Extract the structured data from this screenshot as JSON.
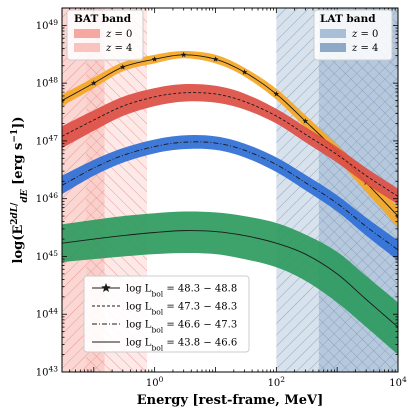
{
  "chart_data": {
    "type": "area",
    "xlabel": "Energy [rest-frame, MeV]",
    "ylabel_main": "log(E",
    "ylabel_sup": "2",
    "ylabel_frac_num": "dL",
    "ylabel_frac_den": "dE",
    "ylabel_tail": " [erg s",
    "ylabel_tail_sup": "−1",
    "ylabel_close": "])",
    "x_scale": "log",
    "y_scale": "log",
    "xlim": [
      0.03,
      10000
    ],
    "ylim": [
      1e+43,
      2e+49
    ],
    "x_tick_base": "10",
    "x_tick_exponents": [
      "0",
      "2",
      "4"
    ],
    "x_tick_values": [
      1,
      100,
      10000
    ],
    "y_tick_base": "10",
    "y_tick_exponents": [
      "43",
      "44",
      "45",
      "46",
      "47",
      "48",
      "49"
    ],
    "y_tick_values": [
      1e+43,
      1e+44,
      1e+45,
      1e+46,
      1e+47,
      1e+48,
      1e+49
    ],
    "bands": {
      "bat": {
        "title": "BAT band",
        "entries": [
          {
            "label_var": "z",
            "label_val": " = 0",
            "range": [
              0.015,
              0.15
            ],
            "color": "#f6a7a0"
          },
          {
            "label_var": "z",
            "label_val": " = 4",
            "range": [
              0.075,
              0.75
            ],
            "color": "#f8c4bd"
          }
        ]
      },
      "lat": {
        "title": "LAT band",
        "entries": [
          {
            "label_var": "z",
            "label_val": " = 0",
            "range": [
              100,
              10000
            ],
            "color": "#a9bfd8"
          },
          {
            "label_var": "z",
            "label_val": " = 4",
            "range": [
              500,
              10000
            ],
            "color": "#8ea9c8"
          }
        ]
      }
    },
    "series": [
      {
        "name": "log L",
        "name_sub": "bol",
        "name_range": " = 48.3 − 48.8",
        "line_style": "solid-star",
        "band_color": "#f5a623",
        "x": [
          0.03,
          0.1,
          0.3,
          1,
          3,
          10,
          30,
          100,
          300,
          1000,
          3000,
          10000
        ],
        "median": [
          5e+47,
          1e+48,
          1.9e+48,
          2.6e+48,
          3.1e+48,
          2.6e+48,
          1.55e+48,
          6.5e+47,
          2.2e+47,
          6.5e+46,
          1.9e+46,
          5e+45
        ],
        "lower": [
          4e+47,
          8.2e+47,
          1.6e+48,
          2.2e+48,
          2.7e+48,
          2.2e+48,
          1.3e+48,
          5.2e+47,
          1.7e+47,
          4.7e+46,
          1.3e+46,
          3.2e+45
        ],
        "upper": [
          6.3e+47,
          1.25e+48,
          2.3e+48,
          3.1e+48,
          3.6e+48,
          3.1e+48,
          1.85e+48,
          8e+47,
          2.8e+47,
          8.5e+46,
          2.6e+46,
          7.2e+45
        ]
      },
      {
        "name": "log L",
        "name_sub": "bol",
        "name_range": " = 47.3 − 48.3",
        "line_style": "dashed",
        "band_color": "#dc4e44",
        "x": [
          0.03,
          0.1,
          0.3,
          1,
          3,
          10,
          30,
          100,
          300,
          1000,
          3000,
          10000
        ],
        "median": [
          1.2e+47,
          2.3e+47,
          4e+47,
          5.8e+47,
          6.8e+47,
          6.5e+47,
          4.8e+47,
          2.7e+47,
          1.3e+47,
          5.8e+46,
          2.5e+46,
          1.1e+46
        ],
        "lower": [
          7.5e+46,
          1.5e+47,
          2.7e+47,
          4e+47,
          4.8e+47,
          4.6e+47,
          3.5e+47,
          2e+47,
          9.5e+46,
          4.2e+46,
          1.8e+46,
          8e+45
        ],
        "upper": [
          1.8e+47,
          3.4e+47,
          5.8e+47,
          8.2e+47,
          9.6e+47,
          9e+47,
          6.6e+47,
          3.6e+47,
          1.75e+47,
          7.8e+46,
          3.4e+46,
          1.5e+46
        ]
      },
      {
        "name": "log L",
        "name_sub": "bol",
        "name_range": " = 46.6 − 47.3",
        "line_style": "dashdot",
        "band_color": "#2f6fd6",
        "x": [
          0.03,
          0.1,
          0.3,
          1,
          3,
          10,
          30,
          100,
          300,
          1000,
          3000,
          10000
        ],
        "median": [
          1.7e+46,
          3.4e+46,
          5.6e+46,
          8e+46,
          9.5e+46,
          9.2e+46,
          6.9e+46,
          3.9e+46,
          1.9e+46,
          8.3e+45,
          3.3e+45,
          1.3e+45
        ],
        "lower": [
          1.2e+46,
          2.5e+46,
          4.2e+46,
          6.1e+46,
          7.2e+46,
          7e+46,
          5.2e+46,
          2.9e+46,
          1.4e+46,
          6e+45,
          2.3e+45,
          8.5e+44
        ],
        "upper": [
          2.5e+46,
          4.7e+46,
          7.5e+46,
          1.06e+47,
          1.25e+47,
          1.2e+47,
          9e+46,
          5.2e+46,
          2.6e+46,
          1.15e+46,
          4.7e+45,
          1.9e+45
        ]
      },
      {
        "name": "log L",
        "name_sub": "bol",
        "name_range": " = 43.8 − 46.6",
        "line_style": "solid",
        "band_color": "#2e9a5e",
        "x": [
          0.03,
          0.1,
          0.3,
          1,
          3,
          10,
          30,
          100,
          300,
          1000,
          3000,
          10000
        ],
        "median": [
          1.7e+45,
          2e+45,
          2.3e+45,
          2.6e+45,
          2.8e+45,
          2.7e+45,
          2.3e+45,
          1.7e+45,
          1.1e+45,
          5e+44,
          1.8e+44,
          6e+43
        ],
        "lower": [
          8e+44,
          9e+44,
          1e+45,
          1.1e+45,
          1.15e+45,
          1.1e+45,
          9e+44,
          6.5e+44,
          3.8e+44,
          1.6e+44,
          6e+43,
          2e+43
        ],
        "upper": [
          3.6e+45,
          4.3e+45,
          5e+45,
          5.6e+45,
          6e+45,
          5.8e+45,
          5e+45,
          3.8e+45,
          2.4e+45,
          1.2e+45,
          4.6e+44,
          1.6e+44
        ]
      }
    ],
    "grid": false,
    "legend_placement": "lower-left"
  }
}
